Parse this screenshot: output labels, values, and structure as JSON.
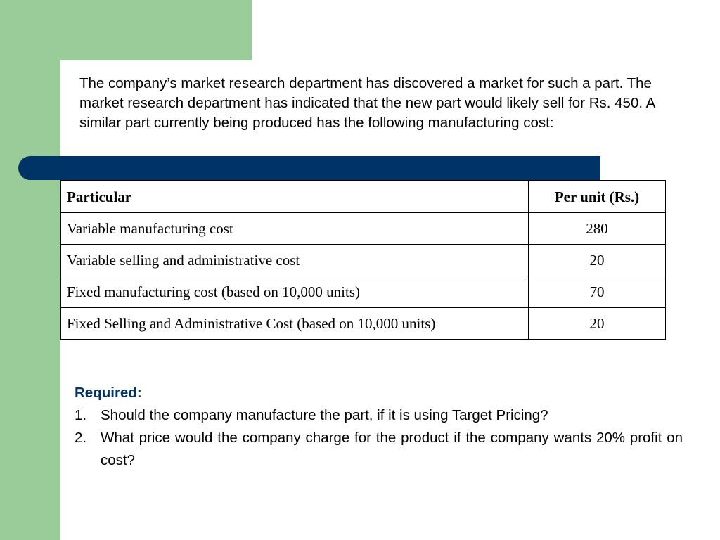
{
  "intro": {
    "text": "The company’s market research department has discovered a market for such a part. The market research department has indicated that the new part would likely sell for Rs. 450. A similar part currently being produced has the following manufacturing cost:"
  },
  "table": {
    "headers": [
      "Particular",
      "Per unit (Rs.)"
    ],
    "rows": [
      {
        "particular": "Variable manufacturing cost",
        "amount": "280"
      },
      {
        "particular": "Variable selling and administrative cost",
        "amount": "20"
      },
      {
        "particular": "Fixed manufacturing cost (based on 10,000 units)",
        "amount": "70"
      },
      {
        "particular": "Fixed Selling and Administrative Cost (based on 10,000 units)",
        "amount": "20"
      }
    ]
  },
  "required": {
    "heading": "Required:",
    "questions": [
      {
        "number": "1.",
        "text": "Should the company manufacture the part, if it is using Target Pricing?"
      },
      {
        "number": "2.",
        "text": "What price would the company charge for the product if the company wants 20% profit on cost?"
      }
    ]
  },
  "colors": {
    "accent_green": "#99cc99",
    "accent_blue": "#003366"
  }
}
